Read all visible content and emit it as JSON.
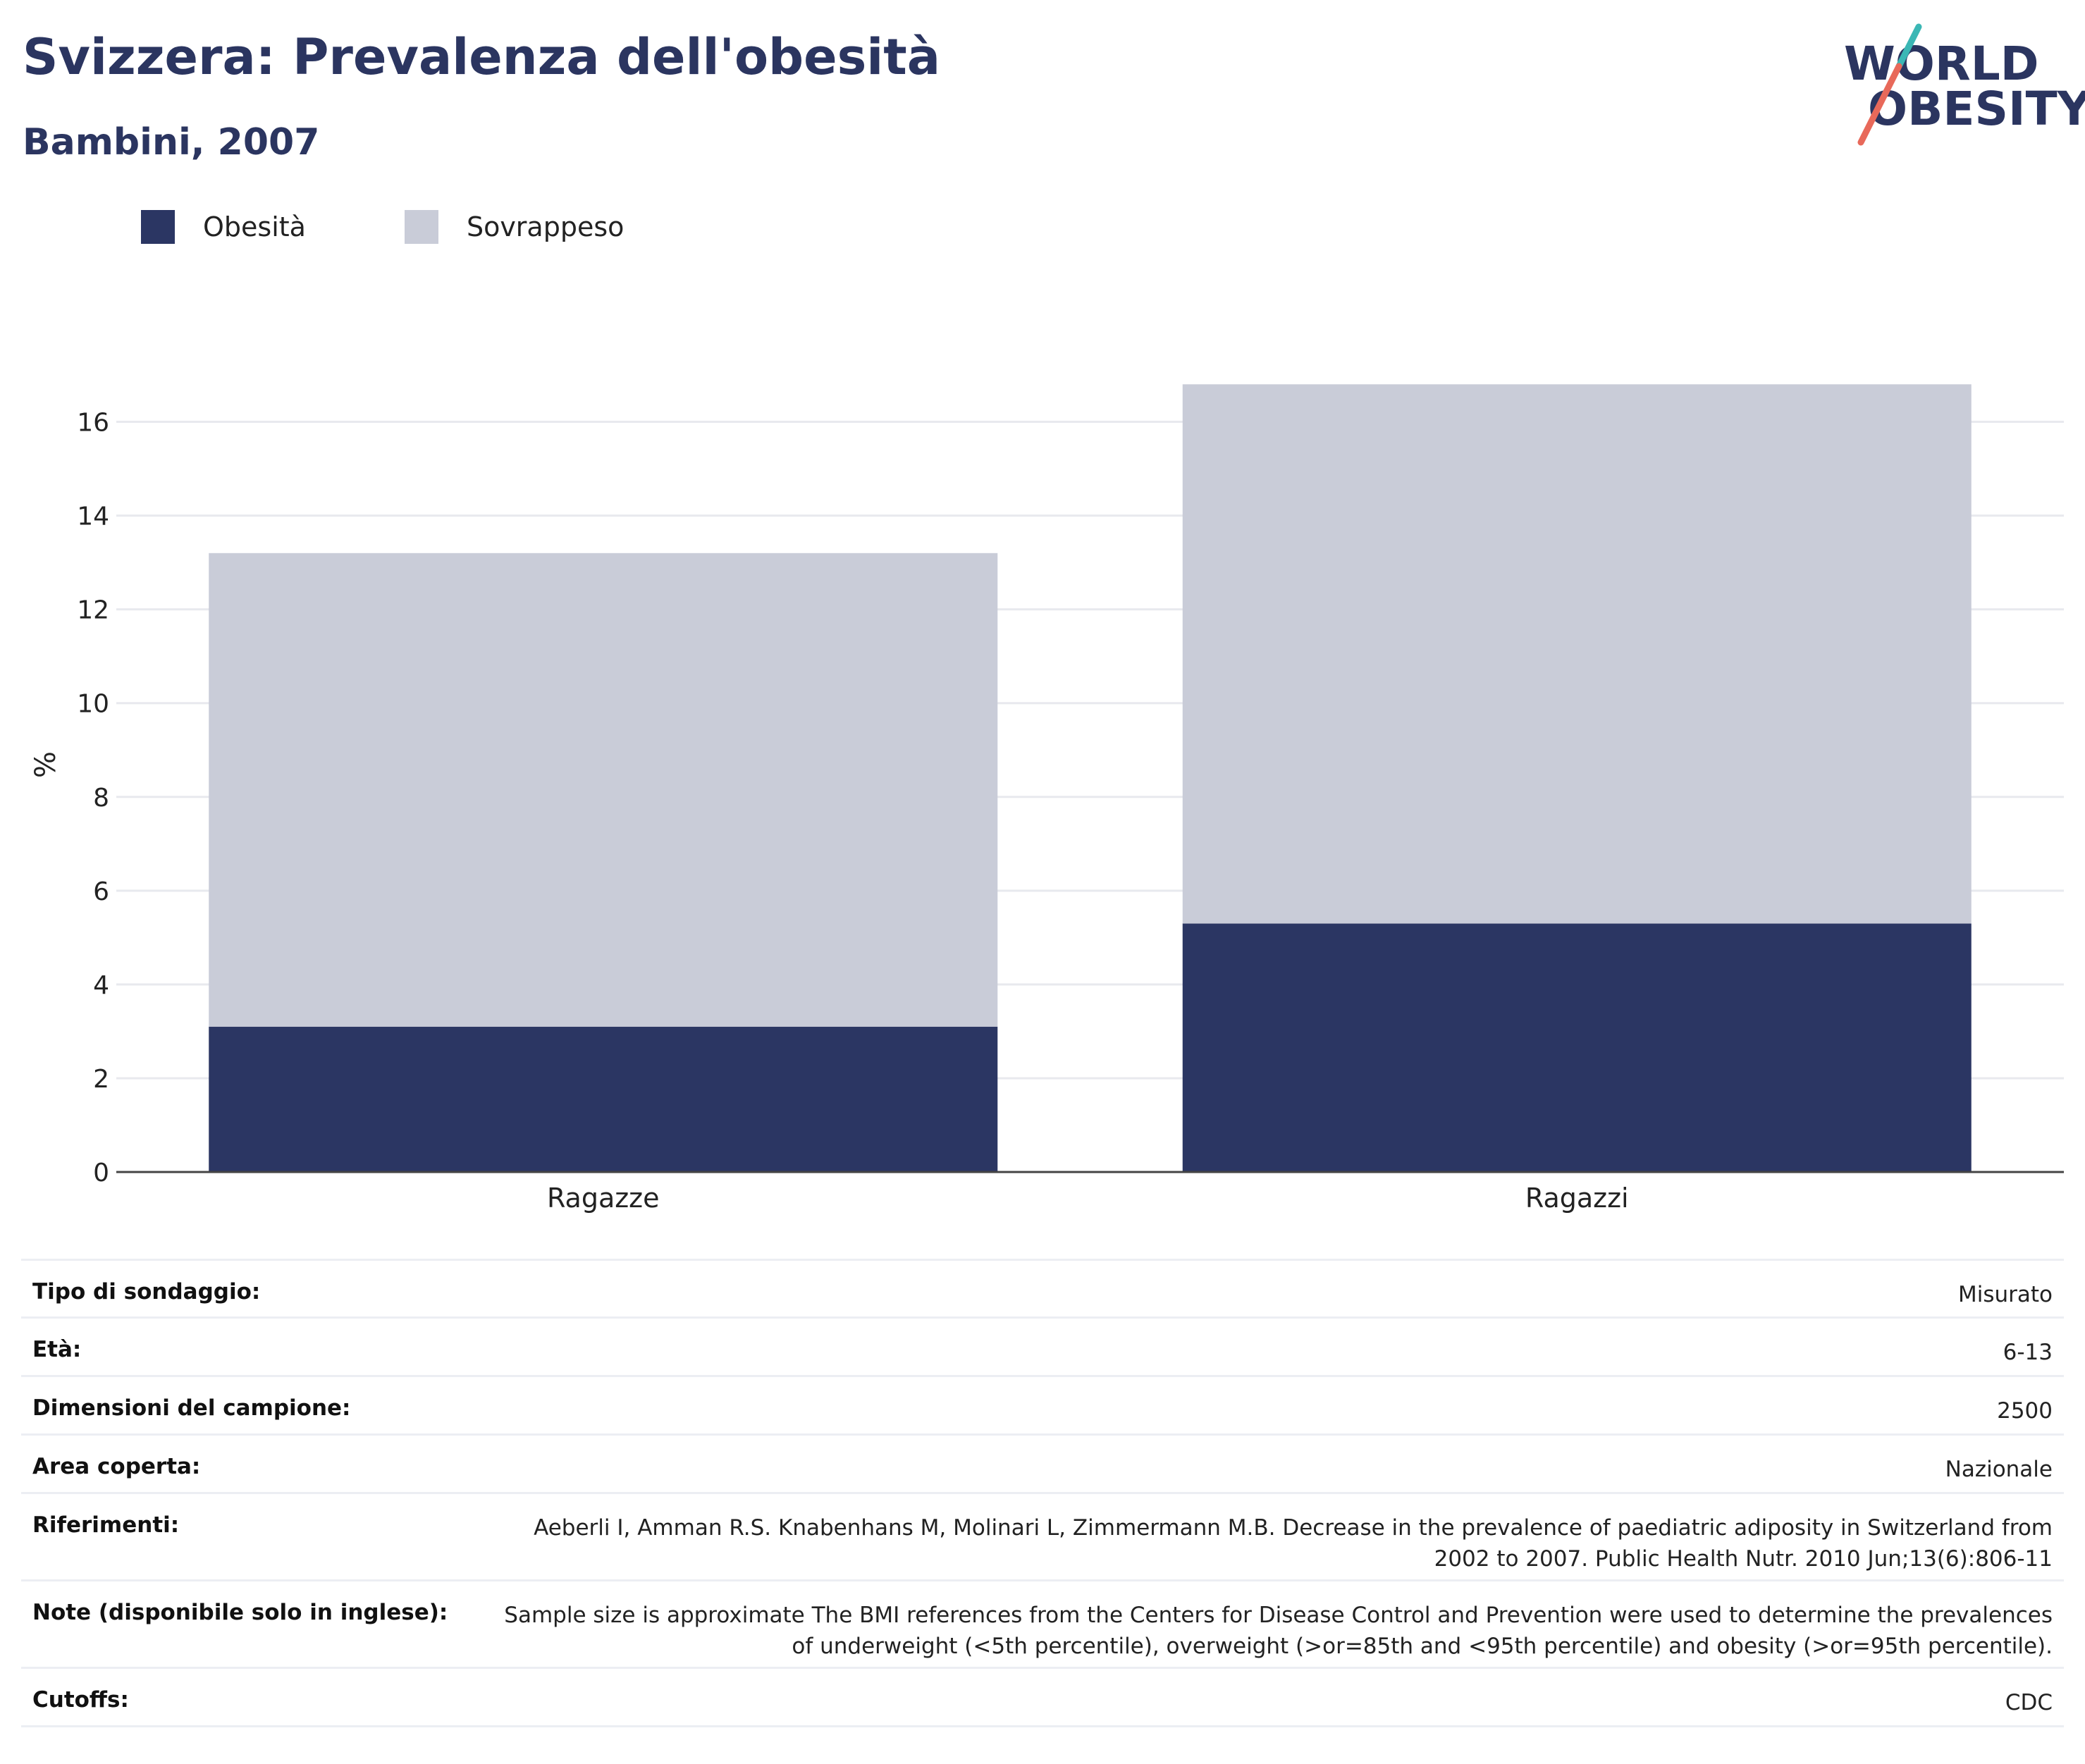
{
  "header": {
    "title": "Svizzera: Prevalenza dell'obesità",
    "subtitle": "Bambini, 2007"
  },
  "logo": {
    "line1": "WORLD",
    "line2": "OBESITY",
    "colors": {
      "navy": "#2b3560",
      "teal": "#3bb7b5",
      "coral": "#e8695a"
    }
  },
  "legend": [
    {
      "label": "Obesità",
      "color": "#2b3663"
    },
    {
      "label": "Sovrappeso",
      "color": "#c9ccd8"
    }
  ],
  "chart_data": {
    "type": "bar",
    "stacked": true,
    "categories": [
      "Ragazze",
      "Ragazzi"
    ],
    "series": [
      {
        "name": "Obesità",
        "values": [
          3.1,
          5.3
        ],
        "color": "#2b3663"
      },
      {
        "name": "Sovrappeso",
        "values": [
          10.1,
          11.5
        ],
        "color": "#c9ccd8"
      }
    ],
    "ylabel": "%",
    "ylim": [
      0,
      17
    ],
    "yticks": [
      0,
      2,
      4,
      6,
      8,
      10,
      12,
      14,
      16
    ],
    "grid": true,
    "legend_position": "top-left"
  },
  "meta": [
    {
      "label": "Tipo di sondaggio:",
      "value": "Misurato"
    },
    {
      "label": "Età:",
      "value": "6-13"
    },
    {
      "label": "Dimensioni del campione:",
      "value": "2500"
    },
    {
      "label": "Area coperta:",
      "value": "Nazionale"
    },
    {
      "label": "Riferimenti:",
      "value": "Aeberli I, Amman R.S. Knabenhans M, Molinari L, Zimmermann M.B. Decrease in the prevalence of paediatric adiposity in Switzerland from 2002 to 2007. Public Health Nutr. 2010 Jun;13(6):806-11"
    },
    {
      "label": "Note (disponibile solo in inglese):",
      "value": "Sample size is approximate The BMI references from the Centers for Disease Control and Prevention were used to determine the prevalences of underweight (<5th percentile), overweight (>or=85th and <95th percentile) and obesity (>or=95th percentile)."
    },
    {
      "label": "Cutoffs:",
      "value": "CDC"
    }
  ]
}
